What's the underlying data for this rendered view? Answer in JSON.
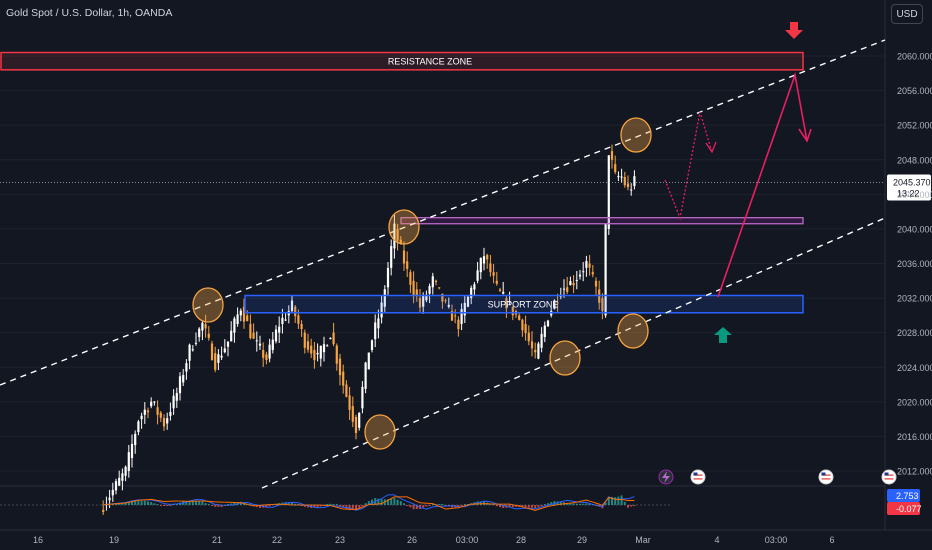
{
  "header": {
    "symbol_title": "Gold Spot / U.S. Dollar, 1h, OANDA",
    "currency_button": "USD"
  },
  "annotations": {
    "resistance_label": "RESISTANCE ZONE",
    "support_label": "SUPPORT ZONE"
  },
  "price_badge": {
    "price": "2045.370",
    "countdown": "13:22"
  },
  "indicator_badges": {
    "upper": "2.753",
    "lower": "-0.077"
  },
  "colors": {
    "background": "#131722",
    "bull": "#ffffff",
    "bear": "#f7a440",
    "resistance": "#f23645",
    "support": "#2962ff",
    "pivot": "#f7a440",
    "target_arrow": "#e91e63",
    "up_arrow": "#089981",
    "down_arrow": "#f23645",
    "channel": "#ffffff"
  },
  "icons": [
    "lightning-icon",
    "us-flag-icon",
    "us-flag-icon",
    "us-flag-icon"
  ],
  "chart_data": {
    "type": "candlestick",
    "title": "Gold Spot / U.S. Dollar, 1h, OANDA",
    "x_tick_labels": [
      "16",
      "19",
      "21",
      "22",
      "23",
      "26",
      "03:00",
      "28",
      "29",
      "Mar",
      "4",
      "03:00",
      "6"
    ],
    "y_tick_labels": [
      "2060.000",
      "2056.000",
      "2052.000",
      "2048.000",
      "2044.000",
      "2040.000",
      "2036.000",
      "2032.000",
      "2028.000",
      "2024.000",
      "2020.000",
      "2016.000",
      "2012.000"
    ],
    "ylim": [
      2008,
      2066
    ],
    "last_price": 2045.37,
    "price_path": [
      [
        0,
        2007.5
      ],
      [
        8,
        2012
      ],
      [
        12,
        2018
      ],
      [
        16,
        2020
      ],
      [
        20,
        2017.5
      ],
      [
        24,
        2021
      ],
      [
        28,
        2026
      ],
      [
        32,
        2029
      ],
      [
        36,
        2024.5
      ],
      [
        40,
        2027
      ],
      [
        44,
        2031
      ],
      [
        48,
        2027
      ],
      [
        52,
        2025
      ],
      [
        56,
        2029
      ],
      [
        60,
        2031
      ],
      [
        64,
        2027
      ],
      [
        68,
        2025
      ],
      [
        72,
        2028
      ],
      [
        76,
        2022
      ],
      [
        80,
        2017
      ],
      [
        84,
        2026
      ],
      [
        88,
        2031
      ],
      [
        92,
        2040
      ],
      [
        96,
        2035
      ],
      [
        100,
        2031
      ],
      [
        104,
        2034
      ],
      [
        108,
        2031
      ],
      [
        112,
        2029
      ],
      [
        116,
        2033
      ],
      [
        120,
        2037
      ],
      [
        124,
        2033
      ],
      [
        128,
        2031
      ],
      [
        132,
        2029
      ],
      [
        136,
        2025
      ],
      [
        140,
        2030
      ],
      [
        144,
        2033
      ],
      [
        148,
        2034
      ],
      [
        152,
        2036
      ],
      [
        156,
        2032
      ],
      [
        157,
        2030
      ],
      [
        158,
        2040
      ],
      [
        159,
        2049
      ],
      [
        161,
        2046
      ],
      [
        163,
        2046
      ],
      [
        165,
        2044.5
      ],
      [
        167,
        2045.4
      ]
    ],
    "zones": [
      {
        "label": "RESISTANCE ZONE",
        "from": 2060.4,
        "to": 2058.4
      },
      {
        "label": "SUPPORT ZONE",
        "from": 2032.3,
        "to": 2030.3
      },
      {
        "label": "",
        "from": 2041.3,
        "to": 2040.6
      }
    ],
    "indicator_values": [
      2.753,
      -0.077
    ]
  }
}
